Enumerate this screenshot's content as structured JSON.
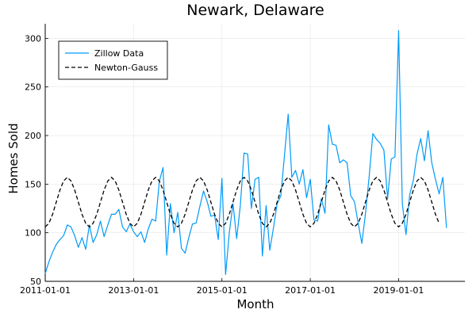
{
  "chart_data": {
    "type": "line",
    "title": "Newark, Delaware",
    "xlabel": "Month",
    "ylabel": "Homes Sold",
    "x_ticks": [
      "2011-01-01",
      "2013-01-01",
      "2015-01-01",
      "2017-01-01",
      "2019-01-01"
    ],
    "y_ticks": [
      50,
      100,
      150,
      200,
      250,
      300
    ],
    "xlim": [
      "2011-01-01",
      "2020-07-01"
    ],
    "ylim": [
      50,
      315
    ],
    "grid": true,
    "legend_position": "top-left",
    "x_start": "2011-01-01",
    "x_step": "1 month",
    "series": [
      {
        "name": "Zillow Data",
        "color": "#009AF9",
        "style": "solid",
        "values": [
          58,
          70,
          80,
          88,
          93,
          97,
          108,
          106,
          97,
          85,
          95,
          83,
          108,
          90,
          98,
          112,
          96,
          108,
          119,
          119,
          124,
          106,
          101,
          109,
          101,
          96,
          101,
          90,
          104,
          114,
          112,
          153,
          167,
          77,
          130,
          100,
          121,
          84,
          79,
          95,
          109,
          110,
          127,
          143,
          132,
          117,
          118,
          93,
          156,
          57,
          100,
          130,
          94,
          128,
          182,
          181,
          125,
          155,
          157,
          76,
          128,
          82,
          105,
          130,
          138,
          180,
          222,
          157,
          164,
          150,
          165,
          136,
          155,
          113,
          112,
          135,
          120,
          211,
          191,
          190,
          172,
          175,
          172,
          138,
          132,
          110,
          89,
          120,
          158,
          202,
          196,
          192,
          185,
          135,
          176,
          178,
          308,
          130,
          98,
          139,
          154,
          181,
          197,
          174,
          205,
          172,
          155,
          140,
          157,
          105
        ]
      },
      {
        "name": "Newton-Gauss",
        "color": "#000000",
        "style": "dashed",
        "values": [
          106,
          109.7,
          119,
          131.5,
          144,
          153.3,
          157,
          153.3,
          144,
          131.5,
          119,
          109.7,
          106,
          109.7,
          119,
          131.5,
          144,
          153.3,
          157,
          153.3,
          144,
          131.5,
          119,
          109.7,
          106,
          109.7,
          119,
          131.5,
          144,
          153.3,
          157,
          153.3,
          144,
          131.5,
          119,
          109.7,
          106,
          109.7,
          119,
          131.5,
          144,
          153.3,
          157,
          153.3,
          144,
          131.5,
          119,
          109.7,
          106,
          109.7,
          119,
          131.5,
          144,
          153.3,
          157,
          153.3,
          144,
          131.5,
          119,
          109.7,
          106,
          109.7,
          119,
          131.5,
          144,
          153.3,
          157,
          153.3,
          144,
          131.5,
          119,
          109.7,
          106,
          109.7,
          119,
          131.5,
          144,
          153.3,
          157,
          153.3,
          144,
          131.5,
          119,
          109.7,
          106,
          109.7,
          119,
          131.5,
          144,
          153.3,
          157,
          153.3,
          144,
          131.5,
          119,
          109.7,
          106,
          109.7,
          119,
          131.5,
          144,
          153.3,
          157,
          153.3,
          144,
          131.5,
          119,
          109.7
        ]
      }
    ]
  }
}
